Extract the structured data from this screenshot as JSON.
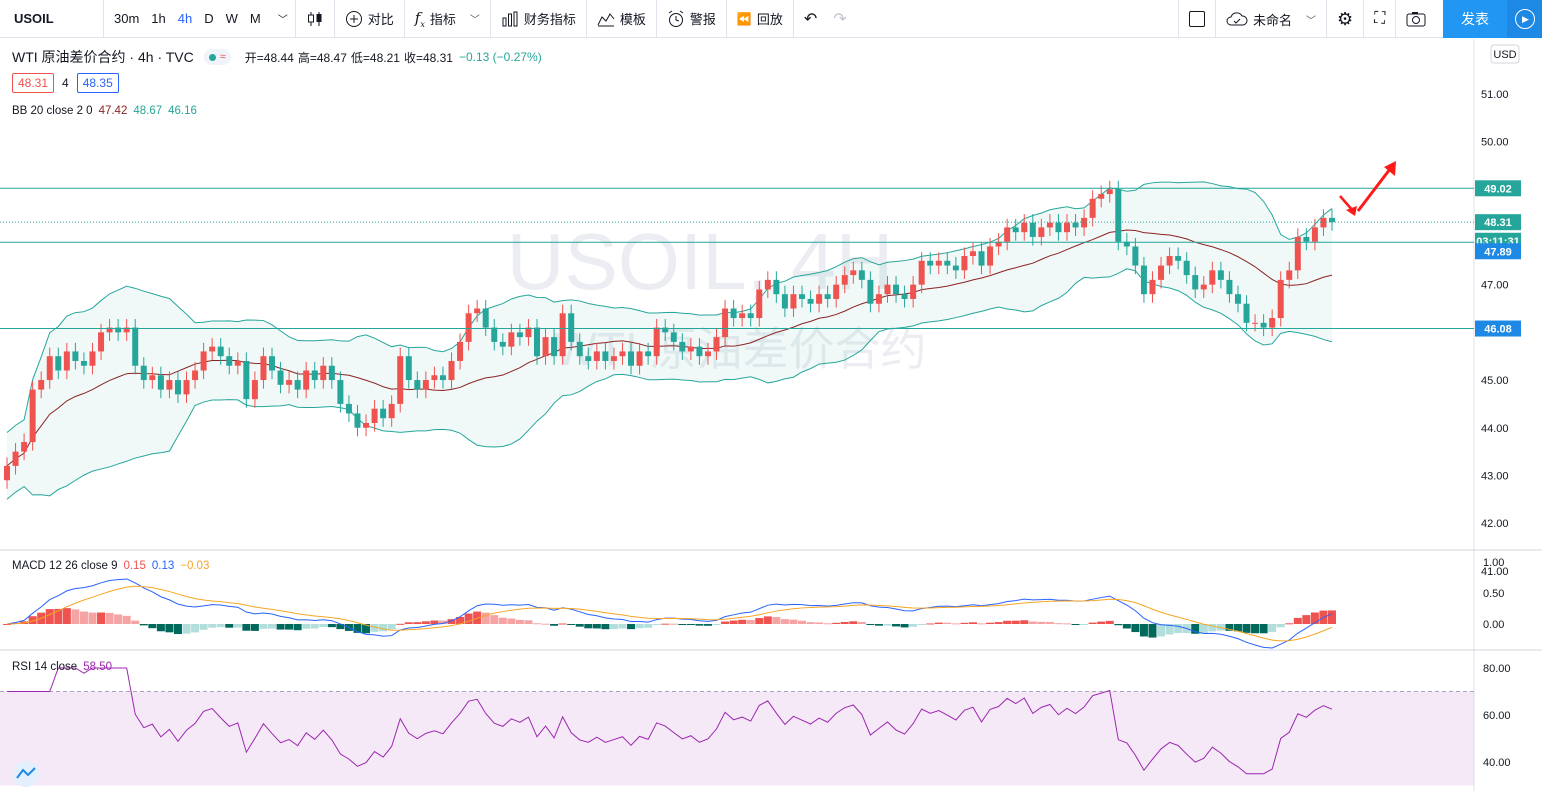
{
  "toolbar": {
    "symbol": "USOIL",
    "intervals": [
      "30m",
      "1h",
      "4h",
      "D",
      "W",
      "M"
    ],
    "active_interval": "4h",
    "compare": "对比",
    "indicators": "指标",
    "financials": "财务指标",
    "templates": "模板",
    "alert": "警报",
    "replay": "回放",
    "layout_name": "未命名",
    "publish": "发表"
  },
  "legend": {
    "title": "WTI 原油差价合约 · 4h · TVC",
    "open": "开=48.44",
    "high": "高=48.47",
    "low": "低=48.21",
    "close": "收=48.31",
    "change": "−0.13 (−0.27%)",
    "bid": "48.31",
    "spread": "4",
    "ask": "48.35",
    "bb_label": "BB 20 close 2 0",
    "bb_basis": "47.42",
    "bb_upper": "48.67",
    "bb_lower": "46.16",
    "macd_label": "MACD 12 26 close 9",
    "macd_hist": "0.15",
    "macd_line": "0.13",
    "macd_signal": "−0.03",
    "rsi_label": "RSI 14 close",
    "rsi_value": "58.50"
  },
  "watermark": {
    "line1": "USOIL, 4H",
    "line2": "WTI 原油差价合约"
  },
  "price_axis": {
    "currency": "USD",
    "ticks": [
      "51.00",
      "50.00",
      "49.00",
      "48.00",
      "47.00",
      "46.00",
      "45.00",
      "44.00",
      "43.00",
      "42.00",
      "41.00"
    ],
    "markers": [
      {
        "label": "49.02",
        "value": 49.02,
        "color": "#26a69a"
      },
      {
        "label": "48.31",
        "value": 48.31,
        "color": "#26a69a"
      },
      {
        "label": "03:11:31",
        "value": 47.92,
        "color": "#26a69a"
      },
      {
        "label": "47.89",
        "value": 47.7,
        "color": "#1e88e5"
      },
      {
        "label": "46.08",
        "value": 46.08,
        "color": "#1e88e5"
      }
    ]
  },
  "macd_axis": {
    "ticks": [
      "1.00",
      "0.50",
      "0.00"
    ]
  },
  "rsi_axis": {
    "ticks": [
      "80.00",
      "60.00",
      "40.00"
    ]
  },
  "colors": {
    "up": "#ef5350",
    "down": "#26a69a",
    "line": "#26a69a",
    "basis": "#8b2323",
    "macd": "#2962ff",
    "signal": "#f5a623",
    "rsi": "#9c27b0"
  },
  "chart_data": {
    "type": "candlestick",
    "horizontal_lines": [
      49.02,
      47.89,
      46.08
    ],
    "ylim": [
      41,
      51.5
    ],
    "closes": [
      43.2,
      43.5,
      43.7,
      44.8,
      45.0,
      45.5,
      45.2,
      45.6,
      45.4,
      45.3,
      45.6,
      46.0,
      46.1,
      46.0,
      46.1,
      45.3,
      45.0,
      45.1,
      44.8,
      45.0,
      44.7,
      45.0,
      45.2,
      45.6,
      45.7,
      45.5,
      45.3,
      45.4,
      44.6,
      45.0,
      45.5,
      45.2,
      44.9,
      45.0,
      44.8,
      45.2,
      45.0,
      45.3,
      45.0,
      44.5,
      44.3,
      44.0,
      44.1,
      44.4,
      44.2,
      44.5,
      45.5,
      45.0,
      44.8,
      45.0,
      45.1,
      45.0,
      45.4,
      45.8,
      46.4,
      46.5,
      46.1,
      45.8,
      45.7,
      46.0,
      45.9,
      46.1,
      45.5,
      45.9,
      45.5,
      46.4,
      45.8,
      45.5,
      45.4,
      45.6,
      45.4,
      45.5,
      45.6,
      45.3,
      45.6,
      45.5,
      46.1,
      46.0,
      45.8,
      45.6,
      45.7,
      45.5,
      45.6,
      45.9,
      46.5,
      46.3,
      46.4,
      46.3,
      46.9,
      47.1,
      46.8,
      46.5,
      46.8,
      46.7,
      46.6,
      46.8,
      46.7,
      47.0,
      47.2,
      47.3,
      47.1,
      46.6,
      46.8,
      47.0,
      46.8,
      46.7,
      47.0,
      47.5,
      47.4,
      47.5,
      47.4,
      47.3,
      47.6,
      47.7,
      47.4,
      47.8,
      47.9,
      48.2,
      48.1,
      48.3,
      48.0,
      48.2,
      48.3,
      48.1,
      48.3,
      48.2,
      48.4,
      48.8,
      48.9,
      49.0,
      47.9,
      47.8,
      47.4,
      46.8,
      47.1,
      47.4,
      47.6,
      47.5,
      47.2,
      46.9,
      47.0,
      47.3,
      47.1,
      46.8,
      46.6,
      46.2,
      46.2,
      46.1,
      46.3,
      47.1,
      47.3,
      48.0,
      47.9,
      48.2,
      48.4,
      48.31
    ]
  }
}
